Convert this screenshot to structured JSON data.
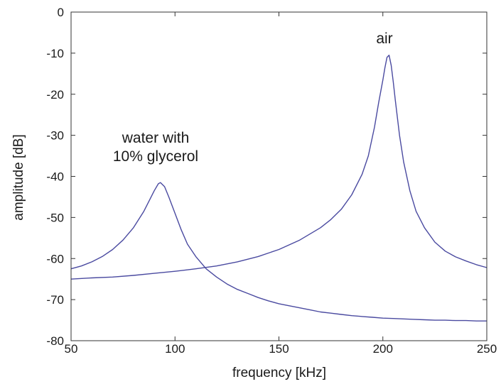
{
  "chart_data": {
    "type": "line",
    "title": "",
    "xlabel": "frequency [kHz]",
    "ylabel": "amplitude [dB]",
    "xlim": [
      50,
      250
    ],
    "ylim": [
      -80,
      0
    ],
    "xticks": [
      50,
      100,
      150,
      200,
      250
    ],
    "yticks": [
      0,
      -10,
      -20,
      -30,
      -40,
      -50,
      -60,
      -70,
      -80
    ],
    "xtick_labels": [
      "50",
      "100",
      "150",
      "200",
      "250"
    ],
    "ytick_labels": [
      "0",
      "-10",
      "-20",
      "-30",
      "-40",
      "-50",
      "-60",
      "-70",
      "-80"
    ],
    "grid": false,
    "line_color": "#4a4aa0",
    "series": [
      {
        "annotation": [
          "water with",
          "10% glycerol"
        ],
        "x": [
          50,
          55,
          60,
          65,
          70,
          75,
          80,
          85,
          88,
          90,
          92,
          93,
          95,
          97,
          100,
          103,
          106,
          110,
          115,
          120,
          125,
          130,
          135,
          140,
          145,
          150,
          155,
          160,
          165,
          170,
          175,
          180,
          185,
          190,
          195,
          200,
          205,
          210,
          215,
          220,
          225,
          230,
          235,
          240,
          245,
          250
        ],
        "y": [
          -62.5,
          -61.8,
          -60.8,
          -59.5,
          -57.8,
          -55.5,
          -52.5,
          -48.5,
          -45.5,
          -43.5,
          -41.8,
          -41.5,
          -42.5,
          -45,
          -49,
          -53,
          -56.5,
          -59.5,
          -62.5,
          -64.5,
          -66.2,
          -67.5,
          -68.5,
          -69.5,
          -70.3,
          -71,
          -71.5,
          -72,
          -72.5,
          -73,
          -73.3,
          -73.6,
          -73.9,
          -74.1,
          -74.3,
          -74.5,
          -74.6,
          -74.7,
          -74.8,
          -74.9,
          -75,
          -75,
          -75.1,
          -75.1,
          -75.2,
          -75.2
        ]
      },
      {
        "annotation": [
          "air"
        ],
        "x": [
          50,
          60,
          70,
          80,
          90,
          100,
          110,
          120,
          130,
          140,
          150,
          160,
          170,
          175,
          180,
          185,
          190,
          193,
          196,
          198,
          200,
          201,
          202,
          203,
          204,
          205,
          206,
          208,
          210,
          213,
          216,
          220,
          225,
          230,
          235,
          240,
          245,
          250
        ],
        "y": [
          -65,
          -64.7,
          -64.5,
          -64.1,
          -63.6,
          -63.1,
          -62.5,
          -61.8,
          -60.8,
          -59.5,
          -57.8,
          -55.5,
          -52.5,
          -50.5,
          -48,
          -44.5,
          -39.5,
          -35,
          -28,
          -22,
          -16.5,
          -13.5,
          -11,
          -10.5,
          -13,
          -17,
          -21.5,
          -30,
          -36.5,
          -43.5,
          -48.5,
          -52.5,
          -56,
          -58.2,
          -59.6,
          -60.6,
          -61.5,
          -62.2
        ]
      }
    ]
  }
}
